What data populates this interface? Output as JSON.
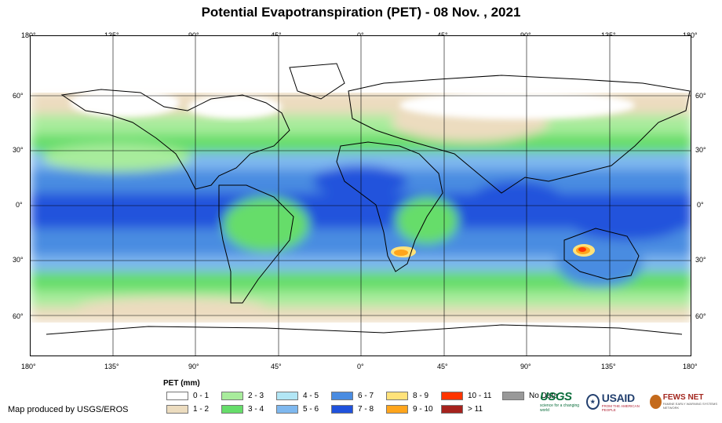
{
  "title": "Potential Evapotranspiration (PET) - 08 Nov. , 2021",
  "axes": {
    "lon_ticks": [
      "180°",
      "135°",
      "90°",
      "45°",
      "0°",
      "45°",
      "90°",
      "135°",
      "180°"
    ],
    "lat_ticks": [
      "60°",
      "30°",
      "0°",
      "30°",
      "60°"
    ]
  },
  "legend": {
    "title": "PET (mm)",
    "items": [
      {
        "label": "0 - 1",
        "color": "#ffffff"
      },
      {
        "label": "1 - 2",
        "color": "#ecdcbf"
      },
      {
        "label": "2 - 3",
        "color": "#a8ec9c"
      },
      {
        "label": "3 - 4",
        "color": "#66dd6a"
      },
      {
        "label": "4 - 5",
        "color": "#b2e6f5"
      },
      {
        "label": "5 - 6",
        "color": "#7fb8ef"
      },
      {
        "label": "6 - 7",
        "color": "#4a8ce1"
      },
      {
        "label": "7 - 8",
        "color": "#2052dc"
      },
      {
        "label": "8 - 9",
        "color": "#ffe27a"
      },
      {
        "label": "9 - 10",
        "color": "#ffa51c"
      },
      {
        "label": "10 - 11",
        "color": "#ff3500"
      },
      {
        "label": "> 11",
        "color": "#a5221d"
      },
      {
        "label": "No Data",
        "color": "#999999"
      }
    ]
  },
  "credit": "Map produced by USGS/EROS",
  "logos": {
    "usgs": "USGS",
    "usgs_tagline": "science for a changing world",
    "usaid": "USAID",
    "usaid_tagline": "FROM THE AMERICAN PEOPLE",
    "fews": "FEWS NET",
    "fews_tagline": "FAMINE EARLY WARNING SYSTEMS NETWORK"
  }
}
